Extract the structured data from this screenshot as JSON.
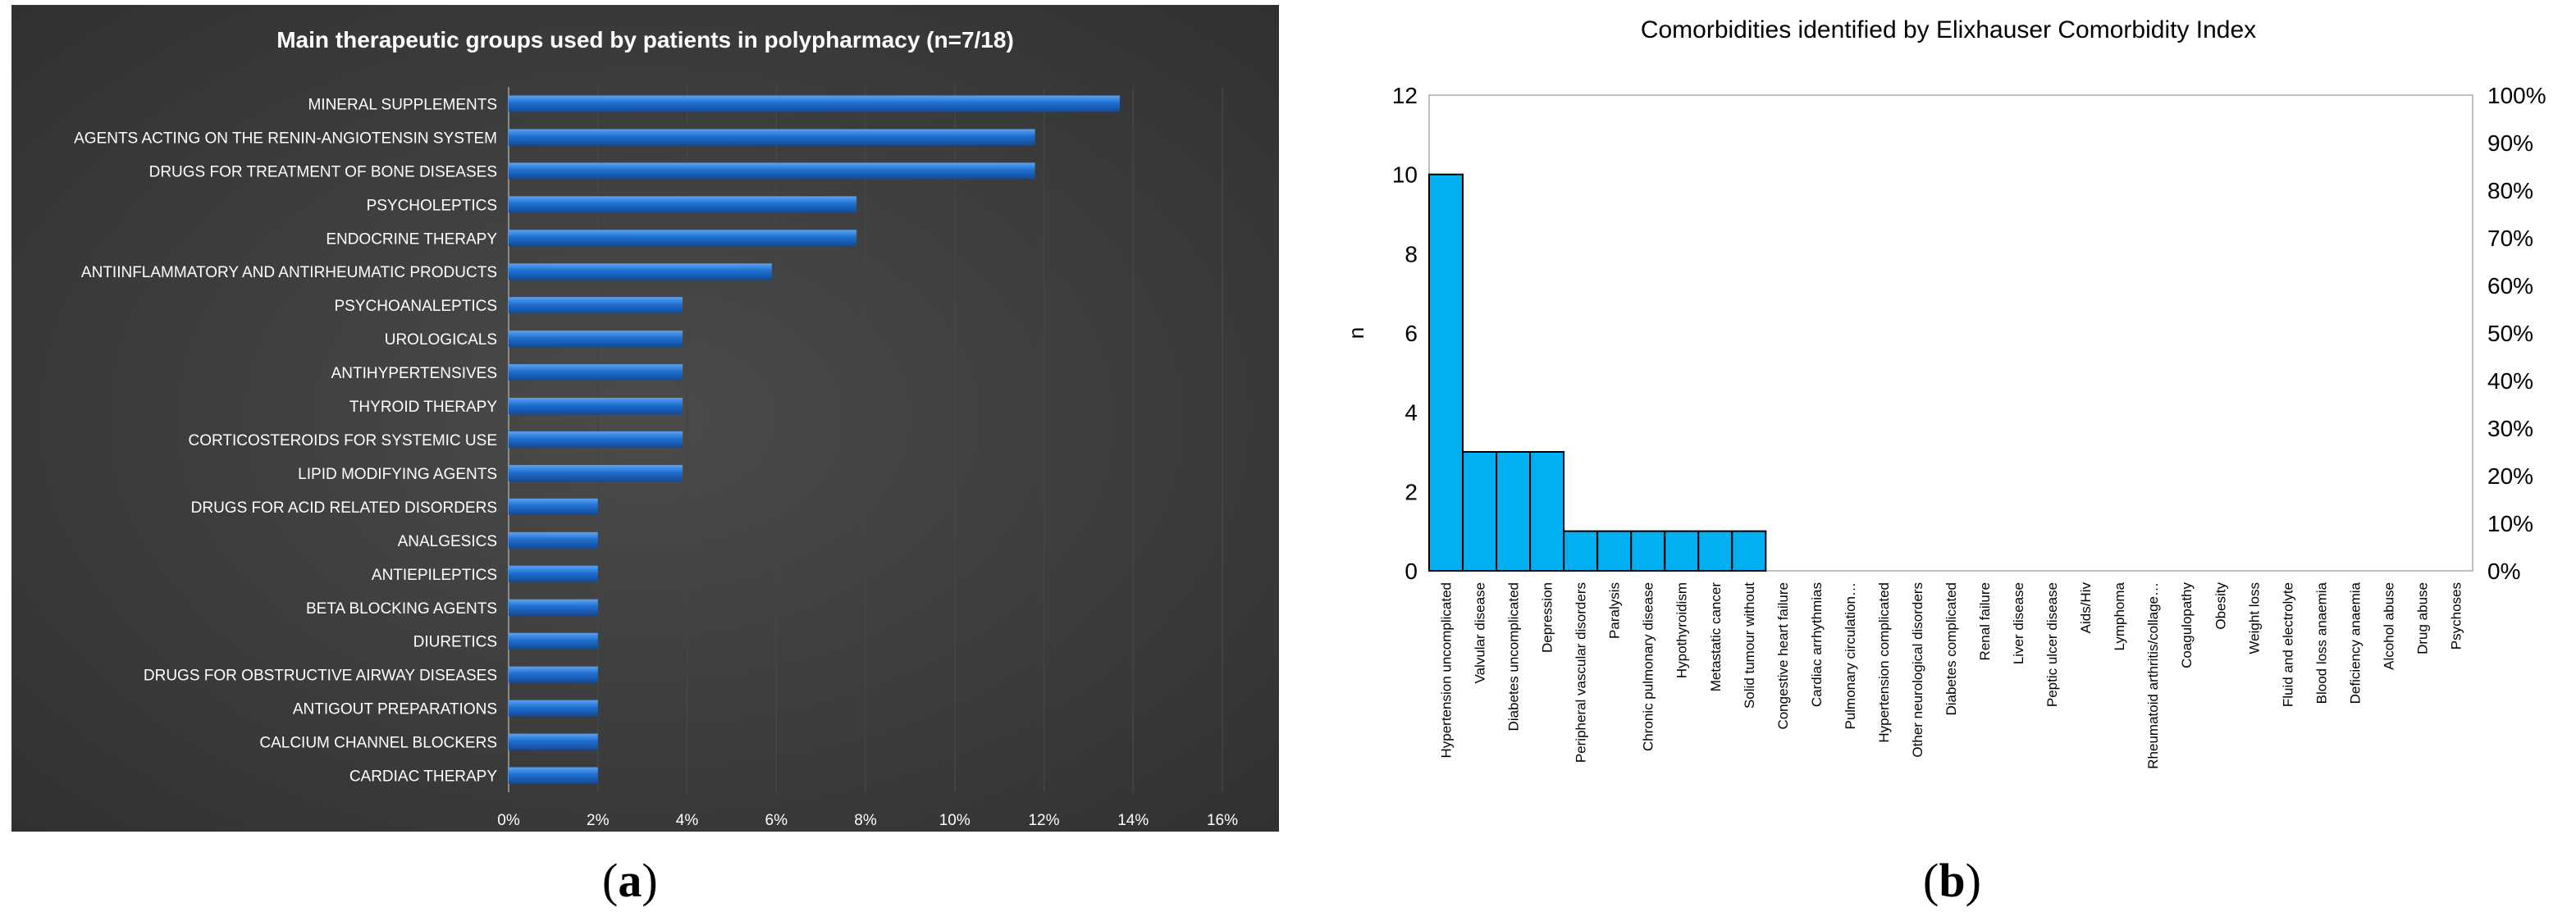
{
  "chart_data": [
    {
      "type": "bar",
      "orientation": "horizontal",
      "title": "Main therapeutic groups used by patients in polypharmacy (n=7/18)",
      "categories": [
        "MINERAL SUPPLEMENTS",
        "AGENTS ACTING ON THE RENIN-ANGIOTENSIN SYSTEM",
        "DRUGS FOR TREATMENT OF BONE DISEASES",
        "PSYCHOLEPTICS",
        "ENDOCRINE THERAPY",
        "ANTIINFLAMMATORY AND ANTIRHEUMATIC PRODUCTS",
        "PSYCHOANALEPTICS",
        "UROLOGICALS",
        "ANTIHYPERTENSIVES",
        "THYROID THERAPY",
        "CORTICOSTEROIDS FOR SYSTEMIC USE",
        "LIPID MODIFYING AGENTS",
        "DRUGS FOR ACID RELATED DISORDERS",
        "ANALGESICS",
        "ANTIEPILEPTICS",
        "BETA BLOCKING AGENTS",
        "DIURETICS",
        "DRUGS FOR OBSTRUCTIVE AIRWAY DISEASES",
        "ANTIGOUT PREPARATIONS",
        "CALCIUM CHANNEL BLOCKERS",
        "CARDIAC THERAPY"
      ],
      "values": [
        13.7,
        11.8,
        11.8,
        7.8,
        7.8,
        5.9,
        3.9,
        3.9,
        3.9,
        3.9,
        3.9,
        3.9,
        2.0,
        2.0,
        2.0,
        2.0,
        2.0,
        2.0,
        2.0,
        2.0,
        2.0
      ],
      "xlim": [
        0,
        16
      ],
      "xticks": [
        "0%",
        "2%",
        "4%",
        "6%",
        "8%",
        "10%",
        "12%",
        "14%",
        "16%"
      ],
      "grid": true,
      "colors": {
        "background": "#2f2f2f",
        "bar": "#1f6fd1",
        "bar_highlight": "#5ba3f0",
        "text": "#ffffff",
        "grid": "#454545"
      }
    },
    {
      "type": "bar",
      "title": "Comorbidities identified by Elixhauser Comorbidity Index",
      "ylabel": "n",
      "xlabel": "",
      "categories": [
        "Hypertension uncomplicated",
        "Valvular disease",
        "Diabetes uncomplicated",
        "Depression",
        "Peripheral vascular disorders",
        "Paralysis",
        "Chronic pulmonary disease",
        "Hypothyroidism",
        "Metastatic cancer",
        "Solid tumour without",
        "Congestive heart failure",
        "Cardiac arrhythmias",
        "Pulmonary circulation…",
        "Hypertension complicated",
        "Other neurological disorders",
        "Diabetes complicated",
        "Renal failure",
        "Liver disease",
        "Peptic ulcer disease",
        "Aids/Hiv",
        "Lymphoma",
        "Rheumatoid arthritis/collage…",
        "Coagulopathy",
        "Obesity",
        "Weight loss",
        "Fluid and electrolyte",
        "Blood loss anaemia",
        "Deficiency anaemia",
        "Alcohol abuse",
        "Drug abuse",
        "Psychoses"
      ],
      "values": [
        10,
        3,
        3,
        3,
        1,
        1,
        1,
        1,
        1,
        1,
        0,
        0,
        0,
        0,
        0,
        0,
        0,
        0,
        0,
        0,
        0,
        0,
        0,
        0,
        0,
        0,
        0,
        0,
        0,
        0,
        0
      ],
      "ylim": [
        0,
        12
      ],
      "yticks": [
        "0",
        "2",
        "4",
        "6",
        "8",
        "10",
        "12"
      ],
      "y2lim": [
        0,
        100
      ],
      "y2ticks": [
        "0%",
        "10%",
        "20%",
        "30%",
        "40%",
        "50%",
        "60%",
        "70%",
        "80%",
        "90%",
        "100%"
      ],
      "colors": {
        "bar": "#00b0f0",
        "bar_edge": "#000000"
      }
    }
  ],
  "captions": {
    "a": "a",
    "b": "b"
  }
}
